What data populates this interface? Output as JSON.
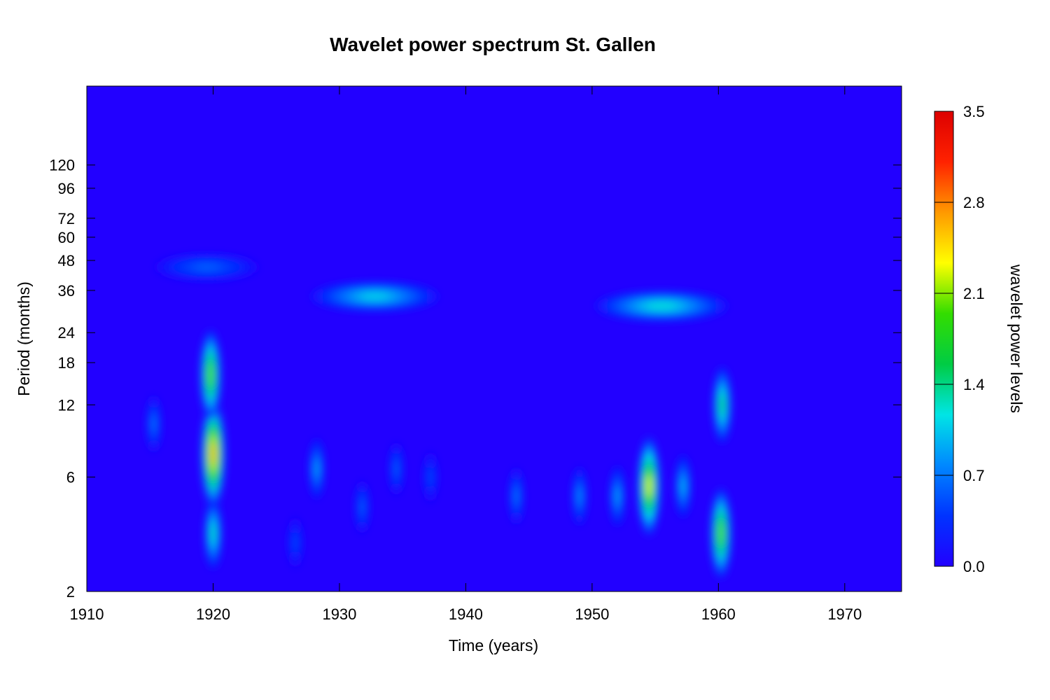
{
  "chart_data": {
    "type": "heatmap",
    "title": "Wavelet power spectrum St. Gallen",
    "xlabel": "Time (years)",
    "ylabel": "Period (months)",
    "colorbar_label": "wavelet power levels",
    "xlim": [
      1910,
      1974.5
    ],
    "ylim": [
      2,
      256
    ],
    "yscale": "log2",
    "x_ticks": [
      1910,
      1920,
      1930,
      1940,
      1950,
      1960,
      1970
    ],
    "y_ticks": [
      2,
      6,
      12,
      18,
      24,
      36,
      48,
      60,
      72,
      96,
      120
    ],
    "colorbar": {
      "range": [
        0.0,
        3.5
      ],
      "ticks": [
        "0.0",
        "0.7",
        "1.4",
        "2.1",
        "2.8",
        "3.5"
      ],
      "colors": [
        "#2200ff",
        "#0033ff",
        "#0088ff",
        "#00e5e5",
        "#00cc44",
        "#33dd00",
        "#ffff00",
        "#ff9900",
        "#ff2200",
        "#dd0000"
      ]
    },
    "background_power": 0.05,
    "features": [
      {
        "year": 1920.0,
        "period": 7.5,
        "power": 2.6
      },
      {
        "year": 1919.8,
        "period": 16,
        "power": 2.0
      },
      {
        "year": 1920.0,
        "period": 3.5,
        "power": 1.3
      },
      {
        "year": 1915.3,
        "period": 10,
        "power": 0.7
      },
      {
        "year": 1926.5,
        "period": 3.2,
        "power": 0.5
      },
      {
        "year": 1928.2,
        "period": 6.5,
        "power": 0.9
      },
      {
        "year": 1931.8,
        "period": 4.5,
        "power": 0.6
      },
      {
        "year": 1934.5,
        "period": 6.5,
        "power": 0.6
      },
      {
        "year": 1937.2,
        "period": 6.0,
        "power": 0.5
      },
      {
        "year": 1932.8,
        "period": 34,
        "power": 1.1
      },
      {
        "year": 1919.5,
        "period": 45,
        "power": 0.6
      },
      {
        "year": 1944.0,
        "period": 5.0,
        "power": 0.7
      },
      {
        "year": 1949.0,
        "period": 5.0,
        "power": 0.8
      },
      {
        "year": 1952.0,
        "period": 5.0,
        "power": 0.9
      },
      {
        "year": 1954.5,
        "period": 5.5,
        "power": 2.3
      },
      {
        "year": 1957.2,
        "period": 5.5,
        "power": 1.0
      },
      {
        "year": 1955.5,
        "period": 31,
        "power": 1.2
      },
      {
        "year": 1960.2,
        "period": 3.5,
        "power": 2.0
      },
      {
        "year": 1960.3,
        "period": 12,
        "power": 1.5
      }
    ]
  }
}
